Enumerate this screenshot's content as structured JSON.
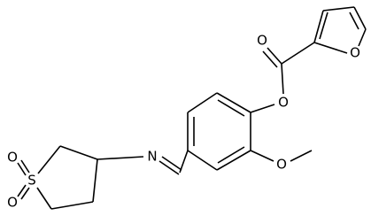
{
  "atoms": [
    {
      "label": "O"
    },
    {
      "label": "O"
    },
    {
      "label": "O"
    },
    {
      "label": "N"
    },
    {
      "label": "O"
    },
    {
      "label": "S"
    },
    {
      "label": "O"
    },
    {
      "label": "O"
    }
  ]
}
